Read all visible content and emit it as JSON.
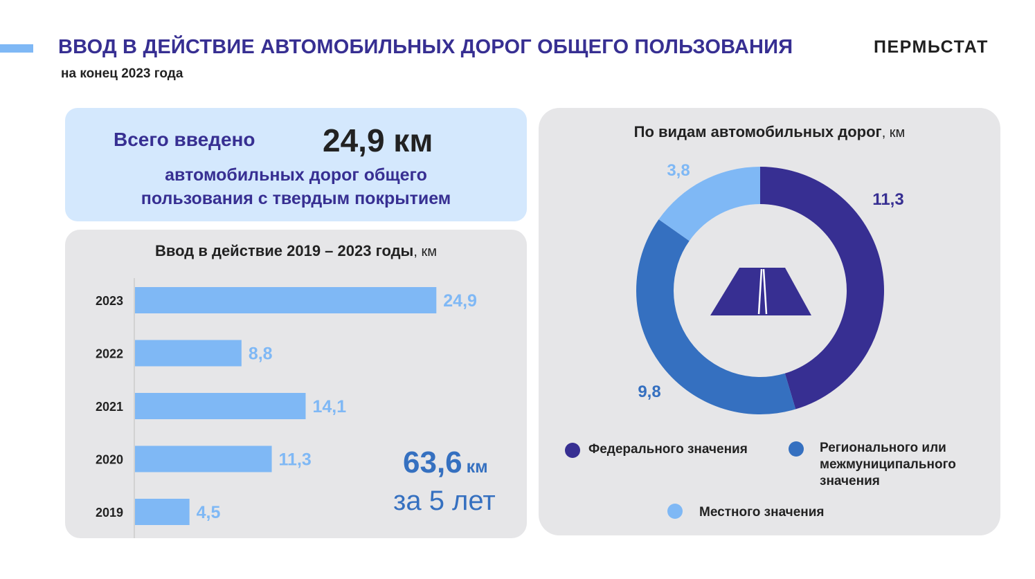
{
  "header": {
    "title": "ВВОД В ДЕЙСТВИЕ АВТОМОБИЛЬНЫХ ДОРОГ ОБЩЕГО ПОЛЬЗОВАНИЯ",
    "subtitle": "на конец 2023 года",
    "brand": "ПЕРМЬСТАТ",
    "accent_color": "#7fb8f5",
    "title_color": "#372f92"
  },
  "total": {
    "label": "Всего введено",
    "value": "24,9 км",
    "description_line1": "автомобильных дорог общего",
    "description_line2": "пользования с твердым покрытием"
  },
  "bar_section": {
    "title": "Ввод в действие 2019 – 2023 годы",
    "title_unit": ", км",
    "summary_value": "63,6",
    "summary_unit": "км",
    "summary_period": "за 5 лет"
  },
  "pie_section": {
    "title": "По видам автомобильных дорог",
    "title_unit": ", км",
    "center_icon": "road-icon"
  },
  "chart_data": [
    {
      "type": "bar",
      "orientation": "horizontal",
      "categories": [
        "2023",
        "2022",
        "2021",
        "2020",
        "2019"
      ],
      "values": [
        24.9,
        8.8,
        14.1,
        11.3,
        4.5
      ],
      "value_labels": [
        "24,9",
        "8,8",
        "14,1",
        "11,3",
        "4,5"
      ],
      "xlim": [
        0,
        27
      ],
      "bar_color": "#7fb8f5",
      "label_color": "#7fb8f5"
    },
    {
      "type": "pie",
      "donut": true,
      "labels": [
        "Федерального значения",
        "Регионального или межмуниципального значения",
        "Местного значения"
      ],
      "values": [
        11.3,
        9.8,
        3.8
      ],
      "value_labels": [
        "11,3",
        "9,8",
        "3,8"
      ],
      "colors": [
        "#372f92",
        "#3570c0",
        "#7fb8f5"
      ],
      "legend_lines": [
        [
          "Федерального значения"
        ],
        [
          "Регионального или",
          "межмуниципального",
          "значения"
        ],
        [
          "Местного значения"
        ]
      ]
    }
  ]
}
